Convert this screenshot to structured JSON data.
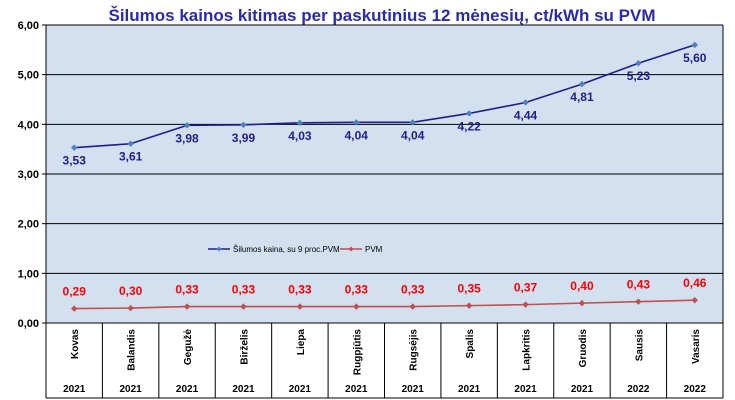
{
  "chart_data": {
    "type": "line",
    "title": "Šilumos kainos kitimas per paskutinius 12 mėnesių, ct/kWh su PVM",
    "categories": [
      "Kovas",
      "Balandis",
      "Gegužė",
      "Birželis",
      "Liepa",
      "Rugpjūtis",
      "Rugsėjis",
      "Spalis",
      "Lapkritis",
      "Gruodis",
      "Sausis",
      "Vasaris"
    ],
    "years": [
      "2021",
      "2021",
      "2021",
      "2021",
      "2021",
      "2021",
      "2021",
      "2021",
      "2021",
      "2021",
      "2022",
      "2022"
    ],
    "ylim": [
      0,
      6
    ],
    "yticks": [
      "0,00",
      "1,00",
      "2,00",
      "3,00",
      "4,00",
      "5,00",
      "6,00"
    ],
    "grid": true,
    "legend_position": "center-left",
    "series": [
      {
        "name": "Šilumos kaina, su 9 proc.PVM",
        "color": "#1f1f8c",
        "marker_color": "#4f81bd",
        "values": [
          3.53,
          3.61,
          3.98,
          3.99,
          4.03,
          4.04,
          4.04,
          4.22,
          4.44,
          4.81,
          5.23,
          5.6
        ],
        "labels": [
          "3,53",
          "3,61",
          "3,98",
          "3,99",
          "4,03",
          "4,04",
          "4,04",
          "4,22",
          "4,44",
          "4,81",
          "5,23",
          "5,60"
        ]
      },
      {
        "name": "PVM",
        "color": "#c0504d",
        "label_color": "#ff0000",
        "values": [
          0.29,
          0.3,
          0.33,
          0.33,
          0.33,
          0.33,
          0.33,
          0.35,
          0.37,
          0.4,
          0.43,
          0.46
        ],
        "labels": [
          "0,29",
          "0,30",
          "0,33",
          "0,33",
          "0,33",
          "0,33",
          "0,33",
          "0,35",
          "0,37",
          "0,40",
          "0,43",
          "0,46"
        ]
      }
    ],
    "colors": {
      "title": "#2a2ab0",
      "plot_background": "#d2e0f0",
      "grid": "#000000"
    }
  }
}
